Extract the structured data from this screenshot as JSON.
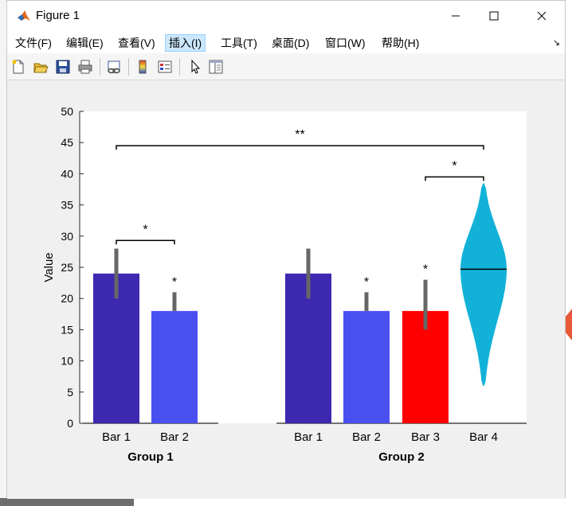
{
  "window": {
    "title": "Figure 1",
    "minimize_label": "minimize",
    "maximize_label": "maximize",
    "close_label": "close"
  },
  "menu": [
    {
      "label": "文件(F)",
      "hotkey": "F"
    },
    {
      "label": "编辑(E)",
      "hotkey": "E"
    },
    {
      "label": "查看(V)",
      "hotkey": "V"
    },
    {
      "label": "插入(I)",
      "hotkey": "I"
    },
    {
      "label": "工具(T)",
      "hotkey": "T"
    },
    {
      "label": "桌面(D)",
      "hotkey": "D"
    },
    {
      "label": "窗口(W)",
      "hotkey": "W"
    },
    {
      "label": "帮助(H)",
      "hotkey": "H"
    }
  ],
  "toolbar": [
    {
      "icon": "new-file-icon"
    },
    {
      "icon": "open-folder-icon"
    },
    {
      "icon": "save-icon"
    },
    {
      "icon": "print-icon"
    },
    {
      "icon": "link-plot-icon"
    },
    {
      "icon": "colorbar-icon"
    },
    {
      "icon": "legend-icon"
    },
    {
      "icon": "pointer-icon"
    },
    {
      "icon": "property-inspector-icon"
    }
  ],
  "colors": {
    "bar_dark": "#3d28b0",
    "bar_medium": "#4a4ff0",
    "bar_red": "#ff0000",
    "violin": "#12b2d8",
    "errorbar": "#666666"
  },
  "chart_data": {
    "type": "bar",
    "ylabel": "Value",
    "ylim": [
      0,
      50
    ],
    "yticks": [
      0,
      5,
      10,
      15,
      20,
      25,
      30,
      35,
      40,
      45,
      50
    ],
    "groups": [
      {
        "name": "Group 1",
        "bars": [
          {
            "label": "Bar 1",
            "value": 24,
            "err_low": 20,
            "err_high": 28,
            "color": "#3d28b0",
            "star": ""
          },
          {
            "label": "Bar 2",
            "value": 18,
            "err_low": 18,
            "err_high": 21,
            "color": "#4a4ff0",
            "star": "*"
          }
        ]
      },
      {
        "name": "Group 2",
        "bars": [
          {
            "label": "Bar 1",
            "value": 24,
            "err_low": 20,
            "err_high": 28,
            "color": "#3d28b0",
            "star": ""
          },
          {
            "label": "Bar 2",
            "value": 18,
            "err_low": 18,
            "err_high": 21,
            "color": "#4a4ff0",
            "star": "*"
          },
          {
            "label": "Bar 3",
            "value": 18,
            "err_low": 15,
            "err_high": 23,
            "color": "#ff0000",
            "star": "*"
          },
          {
            "label": "Bar 4",
            "type": "violin",
            "median": 24.7,
            "min": 6,
            "max": 38.5,
            "color": "#12b2d8",
            "star": ""
          }
        ]
      }
    ],
    "significance": [
      {
        "from": "Group 1 Bar 1",
        "to": "Group 1 Bar 2",
        "y": 29.3,
        "label": "*"
      },
      {
        "from": "Group 2 Bar 3",
        "to": "Group 2 Bar 4",
        "y": 39.5,
        "label": "*"
      },
      {
        "from": "Group 1 Bar 1",
        "to": "Group 2 Bar 4",
        "y": 44.5,
        "label": "**"
      }
    ]
  }
}
